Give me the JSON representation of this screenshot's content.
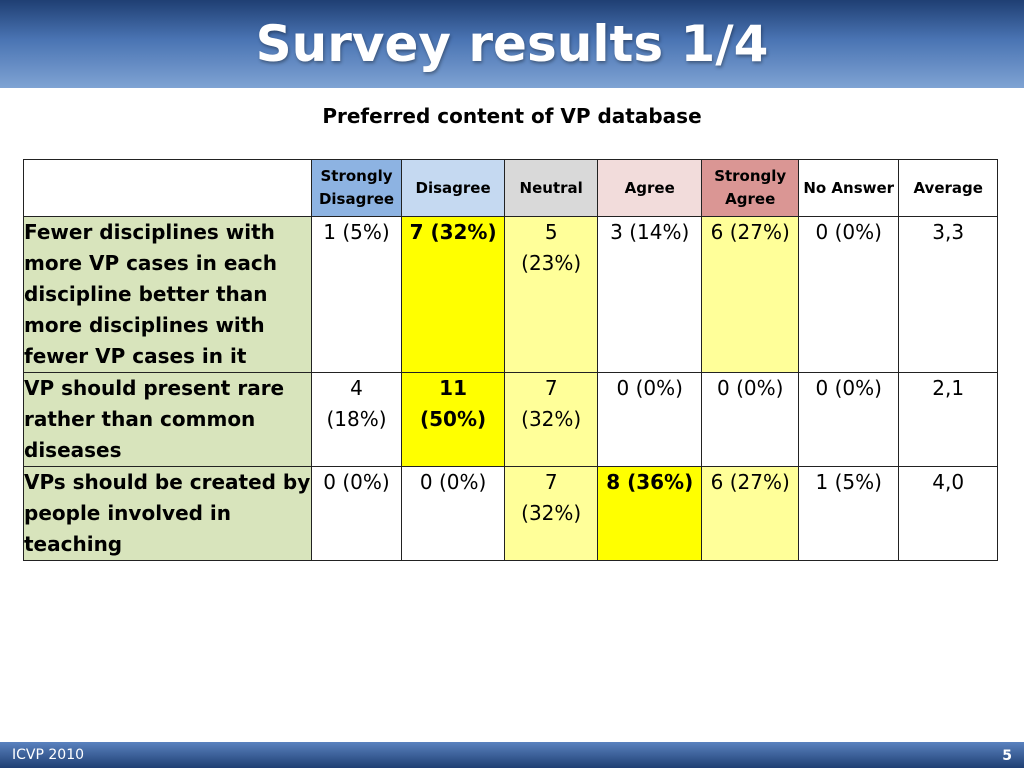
{
  "title": "Survey results 1/4",
  "subtitle": "Preferred content of VP database",
  "columns": [
    {
      "label": "Strongly Disagree",
      "color": "#8db3e2"
    },
    {
      "label": "Disagree",
      "color": "#c5d9f1"
    },
    {
      "label": "Neutral",
      "color": "#d9d9d9"
    },
    {
      "label": "Agree",
      "color": "#f2dcdb"
    },
    {
      "label": "Strongly Agree",
      "color": "#da9694"
    },
    {
      "label": "No Answer",
      "color": "#ffffff"
    },
    {
      "label": "Average",
      "color": "#ffffff"
    }
  ],
  "highlight_colors": {
    "strong": "#ffff00",
    "soft": "#ffff99",
    "none": "#ffffff"
  },
  "label_color": "#d8e4bc",
  "rows": [
    {
      "label": "Fewer disciplines with more VP cases in each discipline better than more disciplines with fewer VP cases in it",
      "cells": [
        {
          "text": "1 (5%)",
          "bg": "none",
          "bold": false
        },
        {
          "text": "7 (32%)",
          "bg": "strong",
          "bold": true
        },
        {
          "text": "5 (23%)",
          "bg": "soft",
          "bold": false
        },
        {
          "text": "3 (14%)",
          "bg": "none",
          "bold": false
        },
        {
          "text": "6 (27%)",
          "bg": "soft",
          "bold": false
        },
        {
          "text": "0 (0%)",
          "bg": "none",
          "bold": false
        },
        {
          "text": "3,3",
          "bg": "none",
          "bold": false
        }
      ]
    },
    {
      "label": "VP should present rare rather than common diseases",
      "cells": [
        {
          "text": "4 (18%)",
          "bg": "none",
          "bold": false
        },
        {
          "text": "11 (50%)",
          "bg": "strong",
          "bold": true
        },
        {
          "text": "7 (32%)",
          "bg": "soft",
          "bold": false
        },
        {
          "text": "0 (0%)",
          "bg": "none",
          "bold": false
        },
        {
          "text": "0 (0%)",
          "bg": "none",
          "bold": false
        },
        {
          "text": "0 (0%)",
          "bg": "none",
          "bold": false
        },
        {
          "text": "2,1",
          "bg": "none",
          "bold": false
        }
      ]
    },
    {
      "label": "VPs should be created by people involved in teaching",
      "cells": [
        {
          "text": "0 (0%)",
          "bg": "none",
          "bold": false
        },
        {
          "text": "0 (0%)",
          "bg": "none",
          "bold": false
        },
        {
          "text": "7 (32%)",
          "bg": "soft",
          "bold": false
        },
        {
          "text": "8 (36%)",
          "bg": "strong",
          "bold": true
        },
        {
          "text": "6 (27%)",
          "bg": "soft",
          "bold": false
        },
        {
          "text": "1 (5%)",
          "bg": "none",
          "bold": false
        },
        {
          "text": "4,0",
          "bg": "none",
          "bold": false
        }
      ]
    }
  ],
  "footer": {
    "left": "ICVP 2010",
    "page_number": "5"
  }
}
